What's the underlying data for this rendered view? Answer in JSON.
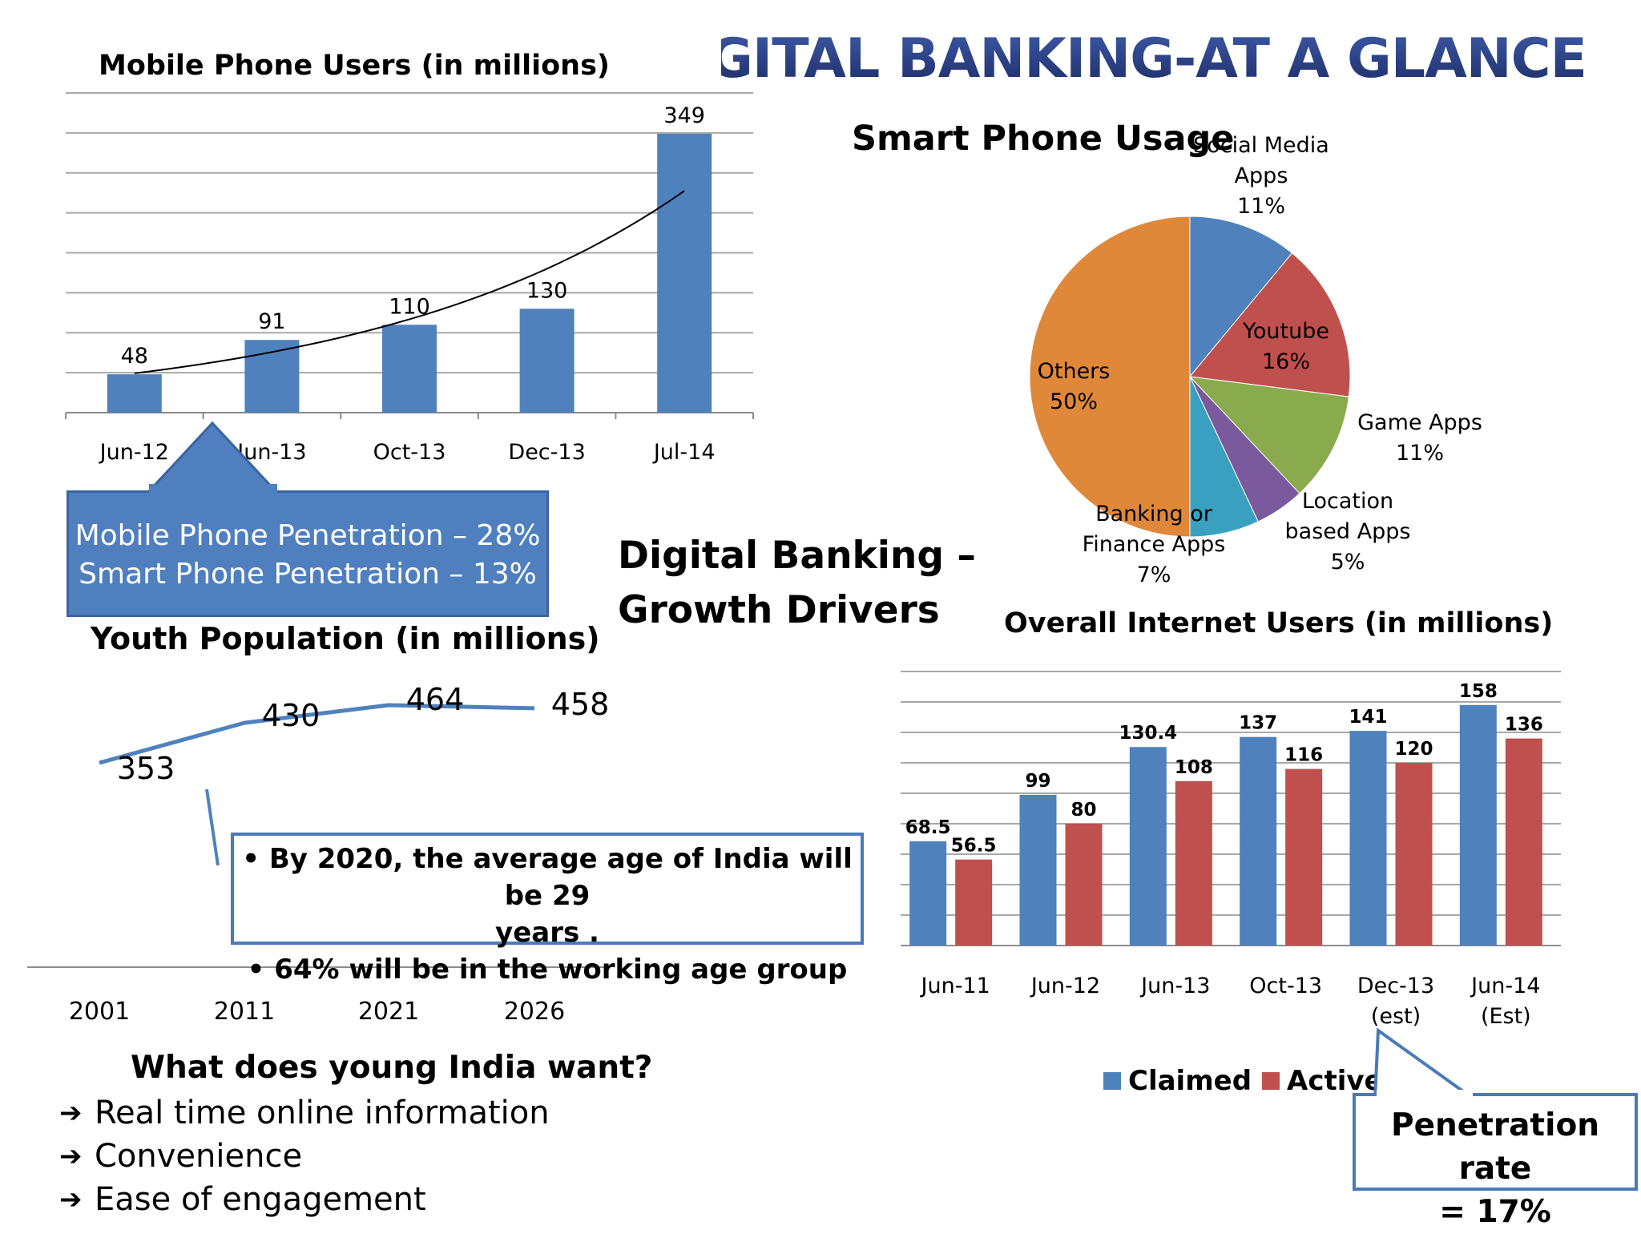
{
  "header": {
    "title": "DIGITAL BANKING-AT A GLANCE",
    "center_title_line1": "Digital Banking –",
    "center_title_line2": "Growth Drivers"
  },
  "penetration_callout": {
    "line1": "Mobile Phone Penetration – 28%",
    "line2": "Smart Phone Penetration – 13%"
  },
  "youth_note": {
    "line1": "• By 2020, the average age of India will be 29",
    "line2": "years .",
    "line3": "• 64% will be in the working age group"
  },
  "young_india": {
    "heading": "What does young India want?",
    "items": [
      "Real time online information",
      "Convenience",
      "Ease of engagement"
    ],
    "bullet": "➔"
  },
  "internet_callout": {
    "line1": "Penetration rate",
    "line2": "= 17%"
  },
  "colors": {
    "blue": "#4f81bd",
    "red": "#c0504d",
    "green": "#8aaa4e",
    "purple": "#7a5a9c",
    "teal": "#3aa0c0",
    "orange": "#e0883a",
    "title_navy": "#2a3f7a"
  },
  "chart_data": [
    {
      "type": "bar",
      "id": "mobile",
      "title": "Mobile Phone Users (in millions)",
      "categories": [
        "Jun-12",
        "Jun-13",
        "Oct-13",
        "Dec-13",
        "Jul-14"
      ],
      "values": [
        48,
        91,
        110,
        130,
        349
      ],
      "value_labels": [
        "48",
        "91",
        "110",
        "130",
        "349"
      ],
      "ylim": [
        0,
        400
      ],
      "grid": true,
      "trendline": "exponential"
    },
    {
      "type": "pie",
      "id": "smartphone",
      "title": "Smart Phone Usage",
      "slices": [
        {
          "label_lines": [
            "Social Media",
            "Apps",
            "11%"
          ],
          "value": 11,
          "color": "#4f81bd"
        },
        {
          "label_lines": [
            "Youtube",
            "16%"
          ],
          "value": 16,
          "color": "#c0504d"
        },
        {
          "label_lines": [
            "Game Apps",
            "11%"
          ],
          "value": 11,
          "color": "#8aaa4e"
        },
        {
          "label_lines": [
            "Location",
            "based Apps",
            "5%"
          ],
          "value": 5,
          "color": "#7a5a9c"
        },
        {
          "label_lines": [
            "Banking or",
            "Finance Apps",
            "7%"
          ],
          "value": 7,
          "color": "#3aa0c0"
        },
        {
          "label_lines": [
            "Others",
            "50%"
          ],
          "value": 50,
          "color": "#e0883a"
        }
      ]
    },
    {
      "type": "line",
      "id": "youth",
      "title": "Youth Population (in millions)",
      "categories": [
        "2001",
        "2011",
        "2021",
        "2026"
      ],
      "values": [
        353,
        430,
        464,
        458
      ],
      "value_labels": [
        "353",
        "430",
        "464",
        "458"
      ]
    },
    {
      "type": "bar",
      "id": "internet",
      "title": "Overall Internet Users (in millions)",
      "categories": [
        [
          "Jun-11"
        ],
        [
          "Jun-12"
        ],
        [
          "Jun-13"
        ],
        [
          "Oct-13"
        ],
        [
          "Dec-13",
          "(est)"
        ],
        [
          "Jun-14",
          "(Est)"
        ]
      ],
      "series": [
        {
          "name": "Claimed",
          "values": [
            68.5,
            99,
            130.4,
            137,
            141,
            158
          ],
          "labels": [
            "68.5",
            "99",
            "130.4",
            "137",
            "141",
            "158"
          ],
          "color": "#4f81bd"
        },
        {
          "name": "Active",
          "values": [
            56.5,
            80,
            108,
            116,
            120,
            136
          ],
          "labels": [
            "56.5",
            "80",
            "108",
            "116",
            "120",
            "136"
          ],
          "color": "#c0504d"
        }
      ],
      "ylim": [
        0,
        180
      ],
      "grid": true,
      "legend": "bottom"
    }
  ]
}
